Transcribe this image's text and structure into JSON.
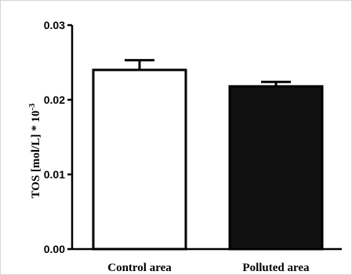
{
  "chart_data": {
    "type": "bar",
    "categories": [
      "Control area",
      "Polluted area"
    ],
    "values": [
      0.024,
      0.0218
    ],
    "error_upper": [
      0.0253,
      0.0224
    ],
    "ylabel": "TOS [mol/L] * 10",
    "ylabel_exponent": "-3",
    "ylim": [
      0,
      0.03
    ],
    "yticks": [
      "0.00",
      "0.01",
      "0.02",
      "0.03"
    ],
    "ytick_values": [
      0,
      0.01,
      0.02,
      0.03
    ],
    "grid": false,
    "colors": {
      "bar_fill": [
        "#ffffff",
        "#111111"
      ],
      "bar_stroke": "#000000",
      "axis": "#000000",
      "frame": "#d6d6d6"
    }
  }
}
